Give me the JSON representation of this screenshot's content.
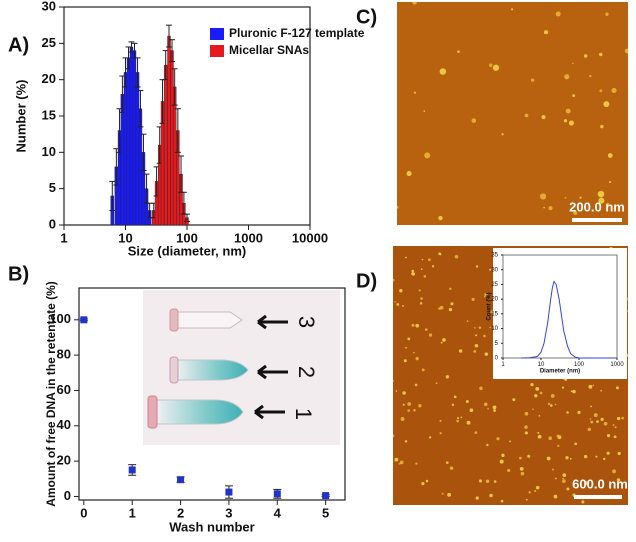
{
  "panels": [
    {
      "label": "A)"
    },
    {
      "label": "B)"
    },
    {
      "label": "C)",
      "scale_bar": "200.0 nm"
    },
    {
      "label": "D)",
      "scale_bar": "600.0 nm"
    }
  ],
  "photo_labels": [
    "3",
    "2",
    "1"
  ],
  "chart_data": [
    {
      "type": "bar",
      "xlabel": "Size (diameter, nm)",
      "ylabel": "Number (%)",
      "xscale": "log",
      "xlim": [
        1,
        10000
      ],
      "xticks": [
        1,
        10,
        100,
        1000,
        10000
      ],
      "ylim": [
        0,
        30
      ],
      "yticks": [
        0,
        5,
        10,
        15,
        20,
        25,
        30
      ],
      "legend": "upper right",
      "series": [
        {
          "name": "Pluronic F-127 template",
          "color": "#1a1aff",
          "x": [
            6.1,
            7.1,
            8,
            8.9,
            10,
            11.2,
            12.5,
            14,
            15.7,
            17.5,
            19.6,
            22,
            24.7
          ],
          "values": [
            4,
            8,
            13,
            18,
            21,
            23,
            24.5,
            24,
            21,
            16,
            10,
            5,
            2
          ],
          "errors": [
            2,
            2.5,
            3,
            2.5,
            2,
            1.5,
            0.7,
            1,
            2,
            2.5,
            2.5,
            2,
            1
          ]
        },
        {
          "name": "Micellar SNAs",
          "color": "#e8191e",
          "x": [
            28.8,
            32,
            36,
            40,
            45,
            51,
            57,
            63,
            71,
            80,
            89,
            100
          ],
          "values": [
            2,
            6,
            11,
            17,
            22,
            26,
            24,
            19,
            13,
            7,
            3,
            1
          ],
          "errors": [
            1,
            2,
            2.5,
            3,
            2,
            1.5,
            1.5,
            2.5,
            3,
            2.5,
            1.5,
            0.5
          ]
        }
      ]
    },
    {
      "type": "scatter",
      "xlabel": "Wash number",
      "ylabel": "Amount of free DNA in the retentate (%)",
      "x": [
        0,
        1,
        2,
        3,
        4,
        5
      ],
      "values": [
        100,
        15,
        9.5,
        2.5,
        1.5,
        0.5
      ],
      "errors": [
        0.5,
        3,
        1.5,
        3.5,
        2.5,
        0.5
      ],
      "color": "#2233cc",
      "xlim": [
        -0.1,
        5.4
      ],
      "xticks": [
        0,
        1,
        2,
        3,
        4,
        5
      ],
      "ylim": [
        -2,
        118
      ],
      "yticks": [
        0,
        20,
        40,
        60,
        80,
        100
      ]
    },
    {
      "type": "line",
      "xlabel": "Diameter (nm)",
      "ylabel": "Count (%)",
      "xscale": "log",
      "xlim": [
        1,
        1000
      ],
      "xticks": [
        1,
        10,
        100,
        1000
      ],
      "ylim": [
        0,
        35
      ],
      "yticks": [
        0,
        5,
        10,
        15,
        20,
        25,
        30,
        35
      ],
      "color": "#3344dd",
      "x": [
        3,
        5,
        8,
        10,
        12,
        15,
        18,
        20,
        22,
        25,
        30,
        35,
        40,
        50,
        60,
        80,
        100,
        200,
        1000
      ],
      "values": [
        0,
        0.1,
        0.5,
        2,
        5,
        12,
        20,
        24,
        26,
        25,
        20,
        14,
        9,
        4,
        1.5,
        0.3,
        0,
        0,
        0
      ]
    }
  ]
}
